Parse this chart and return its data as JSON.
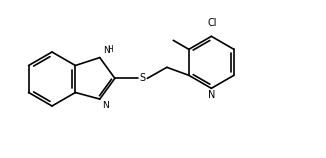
{
  "bg": "#ffffff",
  "lc": "#000000",
  "lw": 1.2,
  "fs": 7.0,
  "figsize": [
    3.26,
    1.58
  ],
  "dpi": 100,
  "xlim": [
    0,
    326
  ],
  "ylim": [
    0,
    158
  ]
}
